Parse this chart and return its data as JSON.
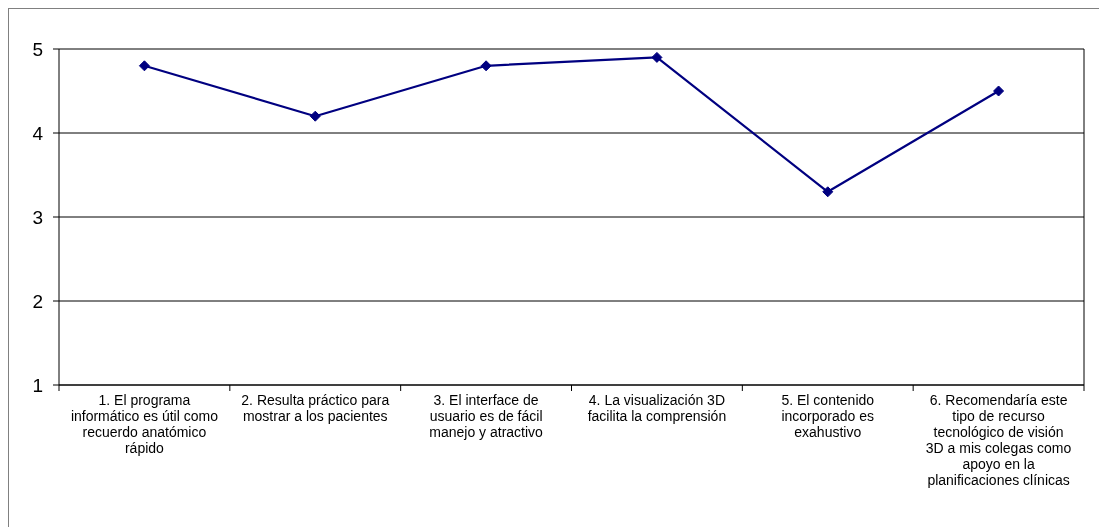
{
  "chart_data": {
    "type": "line",
    "categories": [
      "1. El programa informático es útil como recuerdo anatómico rápido",
      "2. Resulta práctico para mostrar a los pacientes",
      "3. El interface de usuario es de fácil manejo y atractivo",
      "4. La visualización 3D facilita la comprensión",
      "5. El contenido incorporado es exahustivo",
      "6. Recomendaría este tipo de recurso tecnológico de visión 3D a mis colegas como apoyo en la planificaciones clínicas"
    ],
    "series": [
      {
        "color": "#000080",
        "values": [
          4.8,
          4.2,
          4.8,
          4.9,
          3.3,
          4.5
        ]
      }
    ],
    "ylim": [
      1,
      5
    ],
    "yticks": [
      1,
      2,
      3,
      4,
      5
    ],
    "grid": "y",
    "marker": "diamond",
    "line_style": "solid"
  }
}
